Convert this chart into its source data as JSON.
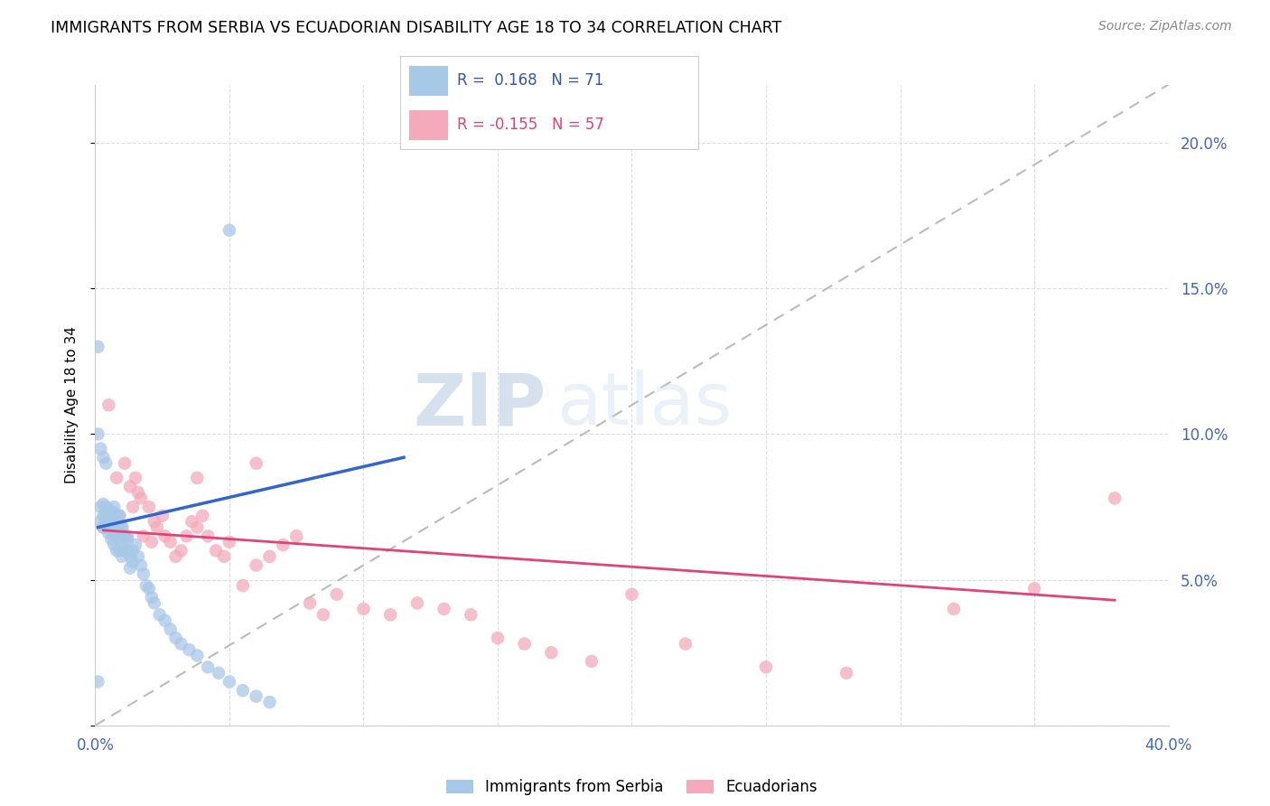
{
  "title": "IMMIGRANTS FROM SERBIA VS ECUADORIAN DISABILITY AGE 18 TO 34 CORRELATION CHART",
  "source": "Source: ZipAtlas.com",
  "ylabel": "Disability Age 18 to 34",
  "xlim": [
    0.0,
    0.4
  ],
  "ylim": [
    0.0,
    0.22
  ],
  "watermark": "ZIPatlas",
  "serbia_color": "#A8C8E8",
  "ecuador_color": "#F4AABB",
  "serbia_line_color": "#3366CC",
  "ecuador_line_color": "#DD4477",
  "dashed_line_color": "#BBBBBB",
  "background_color": "#FFFFFF",
  "grid_color": "#DDDDDD",
  "serbia_scatter_x": [
    0.001,
    0.002,
    0.002,
    0.003,
    0.003,
    0.003,
    0.004,
    0.004,
    0.004,
    0.004,
    0.005,
    0.005,
    0.005,
    0.005,
    0.006,
    0.006,
    0.006,
    0.006,
    0.006,
    0.007,
    0.007,
    0.007,
    0.007,
    0.007,
    0.008,
    0.008,
    0.008,
    0.008,
    0.009,
    0.009,
    0.009,
    0.009,
    0.01,
    0.01,
    0.01,
    0.01,
    0.011,
    0.011,
    0.012,
    0.012,
    0.013,
    0.013,
    0.014,
    0.014,
    0.015,
    0.016,
    0.017,
    0.018,
    0.019,
    0.02,
    0.021,
    0.022,
    0.024,
    0.026,
    0.028,
    0.03,
    0.032,
    0.035,
    0.038,
    0.042,
    0.046,
    0.05,
    0.055,
    0.06,
    0.065,
    0.001,
    0.002,
    0.003,
    0.004,
    0.05,
    0.001
  ],
  "serbia_scatter_y": [
    0.13,
    0.07,
    0.075,
    0.072,
    0.068,
    0.076,
    0.073,
    0.07,
    0.075,
    0.068,
    0.072,
    0.069,
    0.074,
    0.066,
    0.071,
    0.073,
    0.067,
    0.069,
    0.064,
    0.073,
    0.07,
    0.066,
    0.062,
    0.075,
    0.072,
    0.068,
    0.065,
    0.06,
    0.072,
    0.068,
    0.064,
    0.06,
    0.068,
    0.065,
    0.062,
    0.058,
    0.065,
    0.06,
    0.064,
    0.06,
    0.058,
    0.054,
    0.06,
    0.056,
    0.062,
    0.058,
    0.055,
    0.052,
    0.048,
    0.047,
    0.044,
    0.042,
    0.038,
    0.036,
    0.033,
    0.03,
    0.028,
    0.026,
    0.024,
    0.02,
    0.018,
    0.015,
    0.012,
    0.01,
    0.008,
    0.1,
    0.095,
    0.092,
    0.09,
    0.17,
    0.015
  ],
  "ecuador_scatter_x": [
    0.003,
    0.005,
    0.007,
    0.008,
    0.009,
    0.01,
    0.011,
    0.012,
    0.013,
    0.014,
    0.015,
    0.016,
    0.017,
    0.018,
    0.02,
    0.021,
    0.022,
    0.023,
    0.025,
    0.026,
    0.028,
    0.03,
    0.032,
    0.034,
    0.036,
    0.038,
    0.04,
    0.042,
    0.045,
    0.048,
    0.05,
    0.055,
    0.06,
    0.065,
    0.07,
    0.075,
    0.08,
    0.085,
    0.09,
    0.1,
    0.11,
    0.12,
    0.13,
    0.14,
    0.15,
    0.16,
    0.17,
    0.185,
    0.2,
    0.22,
    0.25,
    0.28,
    0.32,
    0.35,
    0.38,
    0.038,
    0.06
  ],
  "ecuador_scatter_y": [
    0.068,
    0.11,
    0.065,
    0.085,
    0.072,
    0.068,
    0.09,
    0.065,
    0.082,
    0.075,
    0.085,
    0.08,
    0.078,
    0.065,
    0.075,
    0.063,
    0.07,
    0.068,
    0.072,
    0.065,
    0.063,
    0.058,
    0.06,
    0.065,
    0.07,
    0.068,
    0.072,
    0.065,
    0.06,
    0.058,
    0.063,
    0.048,
    0.055,
    0.058,
    0.062,
    0.065,
    0.042,
    0.038,
    0.045,
    0.04,
    0.038,
    0.042,
    0.04,
    0.038,
    0.03,
    0.028,
    0.025,
    0.022,
    0.045,
    0.028,
    0.02,
    0.018,
    0.04,
    0.047,
    0.078,
    0.085,
    0.09
  ],
  "serbia_line_x": [
    0.001,
    0.115
  ],
  "serbia_line_y": [
    0.068,
    0.092
  ],
  "ecuador_line_x": [
    0.003,
    0.38
  ],
  "ecuador_line_y": [
    0.067,
    0.043
  ]
}
